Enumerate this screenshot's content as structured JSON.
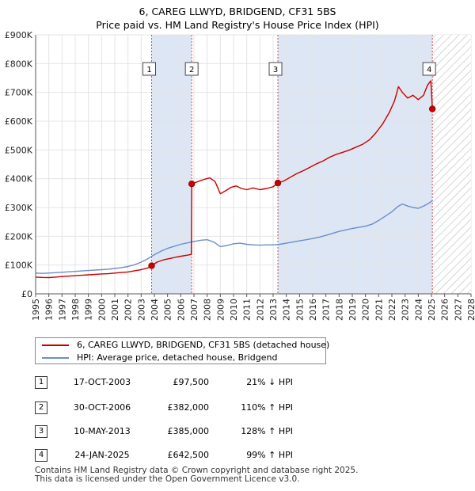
{
  "chart_data": {
    "type": "line",
    "title": "6, CAREG LLWYD, BRIDGEND, CF31 5BS",
    "subtitle": "Price paid vs. HM Land Registry's House Price Index (HPI)",
    "xlim": [
      1995,
      2028
    ],
    "ylim": [
      0,
      900000
    ],
    "y_ticks": [
      {
        "value": 0,
        "label": "£0"
      },
      {
        "value": 100000,
        "label": "£100K"
      },
      {
        "value": 200000,
        "label": "£200K"
      },
      {
        "value": 300000,
        "label": "£300K"
      },
      {
        "value": 400000,
        "label": "£400K"
      },
      {
        "value": 500000,
        "label": "£500K"
      },
      {
        "value": 600000,
        "label": "£600K"
      },
      {
        "value": 700000,
        "label": "£700K"
      },
      {
        "value": 800000,
        "label": "£800K"
      },
      {
        "value": 900000,
        "label": "£900K"
      }
    ],
    "x_ticks": [
      "1995",
      "1996",
      "1997",
      "1998",
      "1999",
      "2000",
      "2001",
      "2002",
      "2003",
      "2004",
      "2005",
      "2006",
      "2007",
      "2008",
      "2009",
      "2010",
      "2011",
      "2012",
      "2013",
      "2014",
      "2015",
      "2016",
      "2017",
      "2018",
      "2019",
      "2020",
      "2021",
      "2022",
      "2023",
      "2024",
      "2025",
      "2026",
      "2027",
      "2028"
    ],
    "forecast_start": 2025.1,
    "colors": {
      "property": "#cc0000",
      "hpi": "#6a8fc7",
      "band": "#dde6f5",
      "marker_line": "#cc0000"
    },
    "sales": [
      {
        "id": "1",
        "x": 2003.79,
        "y": 97500
      },
      {
        "id": "2",
        "x": 2006.83,
        "y": 382000
      },
      {
        "id": "3",
        "x": 2013.36,
        "y": 385000
      },
      {
        "id": "4",
        "x": 2025.07,
        "y": 642500
      }
    ],
    "series": [
      {
        "name": "6, CAREG LLWYD, BRIDGEND, CF31 5BS (detached house)",
        "color": "#cc0000",
        "points": [
          [
            1995,
            58000
          ],
          [
            1995.5,
            57000
          ],
          [
            1996,
            56500
          ],
          [
            1996.5,
            58000
          ],
          [
            1997,
            60000
          ],
          [
            1997.5,
            61500
          ],
          [
            1998,
            63000
          ],
          [
            1998.5,
            64500
          ],
          [
            1999,
            66000
          ],
          [
            1999.5,
            67500
          ],
          [
            2000,
            69000
          ],
          [
            2000.5,
            70000
          ],
          [
            2001,
            72000
          ],
          [
            2001.5,
            74000
          ],
          [
            2002,
            76000
          ],
          [
            2002.5,
            80000
          ],
          [
            2003,
            84000
          ],
          [
            2003.5,
            90000
          ],
          [
            2003.79,
            97500
          ],
          [
            2004.2,
            110000
          ],
          [
            2004.7,
            118000
          ],
          [
            2005.2,
            123000
          ],
          [
            2005.7,
            128000
          ],
          [
            2006.2,
            132000
          ],
          [
            2006.6,
            135000
          ],
          [
            2006.8,
            138000
          ],
          [
            2006.83,
            382000
          ],
          [
            2007.3,
            390000
          ],
          [
            2007.8,
            398000
          ],
          [
            2008.2,
            403000
          ],
          [
            2008.6,
            390000
          ],
          [
            2009.0,
            348000
          ],
          [
            2009.4,
            358000
          ],
          [
            2009.8,
            370000
          ],
          [
            2010.2,
            375000
          ],
          [
            2010.6,
            366000
          ],
          [
            2011.0,
            362000
          ],
          [
            2011.5,
            368000
          ],
          [
            2012.0,
            362000
          ],
          [
            2012.5,
            366000
          ],
          [
            2013.0,
            372000
          ],
          [
            2013.36,
            385000
          ],
          [
            2013.8,
            392000
          ],
          [
            2014.3,
            405000
          ],
          [
            2014.8,
            418000
          ],
          [
            2015.3,
            428000
          ],
          [
            2015.8,
            440000
          ],
          [
            2016.3,
            452000
          ],
          [
            2016.8,
            462000
          ],
          [
            2017.3,
            475000
          ],
          [
            2017.8,
            485000
          ],
          [
            2018.3,
            492000
          ],
          [
            2018.8,
            500000
          ],
          [
            2019.3,
            510000
          ],
          [
            2019.8,
            520000
          ],
          [
            2020.3,
            535000
          ],
          [
            2020.8,
            560000
          ],
          [
            2021.3,
            590000
          ],
          [
            2021.8,
            630000
          ],
          [
            2022.2,
            670000
          ],
          [
            2022.5,
            720000
          ],
          [
            2022.8,
            700000
          ],
          [
            2023.2,
            680000
          ],
          [
            2023.6,
            690000
          ],
          [
            2024.0,
            675000
          ],
          [
            2024.4,
            690000
          ],
          [
            2024.7,
            725000
          ],
          [
            2024.95,
            740000
          ],
          [
            2025.07,
            642500
          ]
        ]
      },
      {
        "name": "HPI: Average price, detached house, Bridgend",
        "color": "#6a8fc7",
        "points": [
          [
            1995,
            72000
          ],
          [
            1995.5,
            71000
          ],
          [
            1996,
            72000
          ],
          [
            1996.5,
            73500
          ],
          [
            1997,
            75000
          ],
          [
            1997.5,
            76500
          ],
          [
            1998,
            78000
          ],
          [
            1998.5,
            79500
          ],
          [
            1999,
            81000
          ],
          [
            1999.5,
            82500
          ],
          [
            2000,
            84000
          ],
          [
            2000.5,
            85500
          ],
          [
            2001,
            88000
          ],
          [
            2001.5,
            91000
          ],
          [
            2002,
            95000
          ],
          [
            2002.5,
            101000
          ],
          [
            2003,
            110000
          ],
          [
            2003.5,
            122000
          ],
          [
            2004,
            136000
          ],
          [
            2004.5,
            148000
          ],
          [
            2005,
            158000
          ],
          [
            2005.5,
            165000
          ],
          [
            2006,
            172000
          ],
          [
            2006.5,
            177000
          ],
          [
            2007,
            182000
          ],
          [
            2007.5,
            186000
          ],
          [
            2008,
            188000
          ],
          [
            2008.5,
            180000
          ],
          [
            2009,
            164000
          ],
          [
            2009.5,
            168000
          ],
          [
            2010,
            174000
          ],
          [
            2010.5,
            176000
          ],
          [
            2011,
            172000
          ],
          [
            2011.5,
            170000
          ],
          [
            2012,
            169000
          ],
          [
            2012.5,
            170000
          ],
          [
            2013,
            170000
          ],
          [
            2013.5,
            172000
          ],
          [
            2014,
            176000
          ],
          [
            2014.5,
            180000
          ],
          [
            2015,
            184000
          ],
          [
            2015.5,
            188000
          ],
          [
            2016,
            192000
          ],
          [
            2016.5,
            197000
          ],
          [
            2017,
            203000
          ],
          [
            2017.5,
            210000
          ],
          [
            2018,
            217000
          ],
          [
            2018.5,
            222000
          ],
          [
            2019,
            227000
          ],
          [
            2019.5,
            231000
          ],
          [
            2020,
            235000
          ],
          [
            2020.5,
            242000
          ],
          [
            2021,
            255000
          ],
          [
            2021.5,
            270000
          ],
          [
            2022,
            285000
          ],
          [
            2022.5,
            305000
          ],
          [
            2022.8,
            312000
          ],
          [
            2023.2,
            305000
          ],
          [
            2023.6,
            300000
          ],
          [
            2024.0,
            297000
          ],
          [
            2024.4,
            305000
          ],
          [
            2024.8,
            315000
          ],
          [
            2025.1,
            325000
          ]
        ]
      }
    ]
  },
  "legend": {
    "property_label": "6, CAREG LLWYD, BRIDGEND, CF31 5BS (detached house)",
    "hpi_label": "HPI: Average price, detached house, Bridgend"
  },
  "transactions": [
    {
      "id": "1",
      "date": "17-OCT-2003",
      "price": "£97,500",
      "hpi": "21% ↓ HPI"
    },
    {
      "id": "2",
      "date": "30-OCT-2006",
      "price": "£382,000",
      "hpi": "110% ↑ HPI"
    },
    {
      "id": "3",
      "date": "10-MAY-2013",
      "price": "£385,000",
      "hpi": "128% ↑ HPI"
    },
    {
      "id": "4",
      "date": "24-JAN-2025",
      "price": "£642,500",
      "hpi": "99% ↑ HPI"
    }
  ],
  "footer": {
    "line1": "Contains HM Land Registry data © Crown copyright and database right 2025.",
    "line2": "This data is licensed under the Open Government Licence v3.0."
  }
}
